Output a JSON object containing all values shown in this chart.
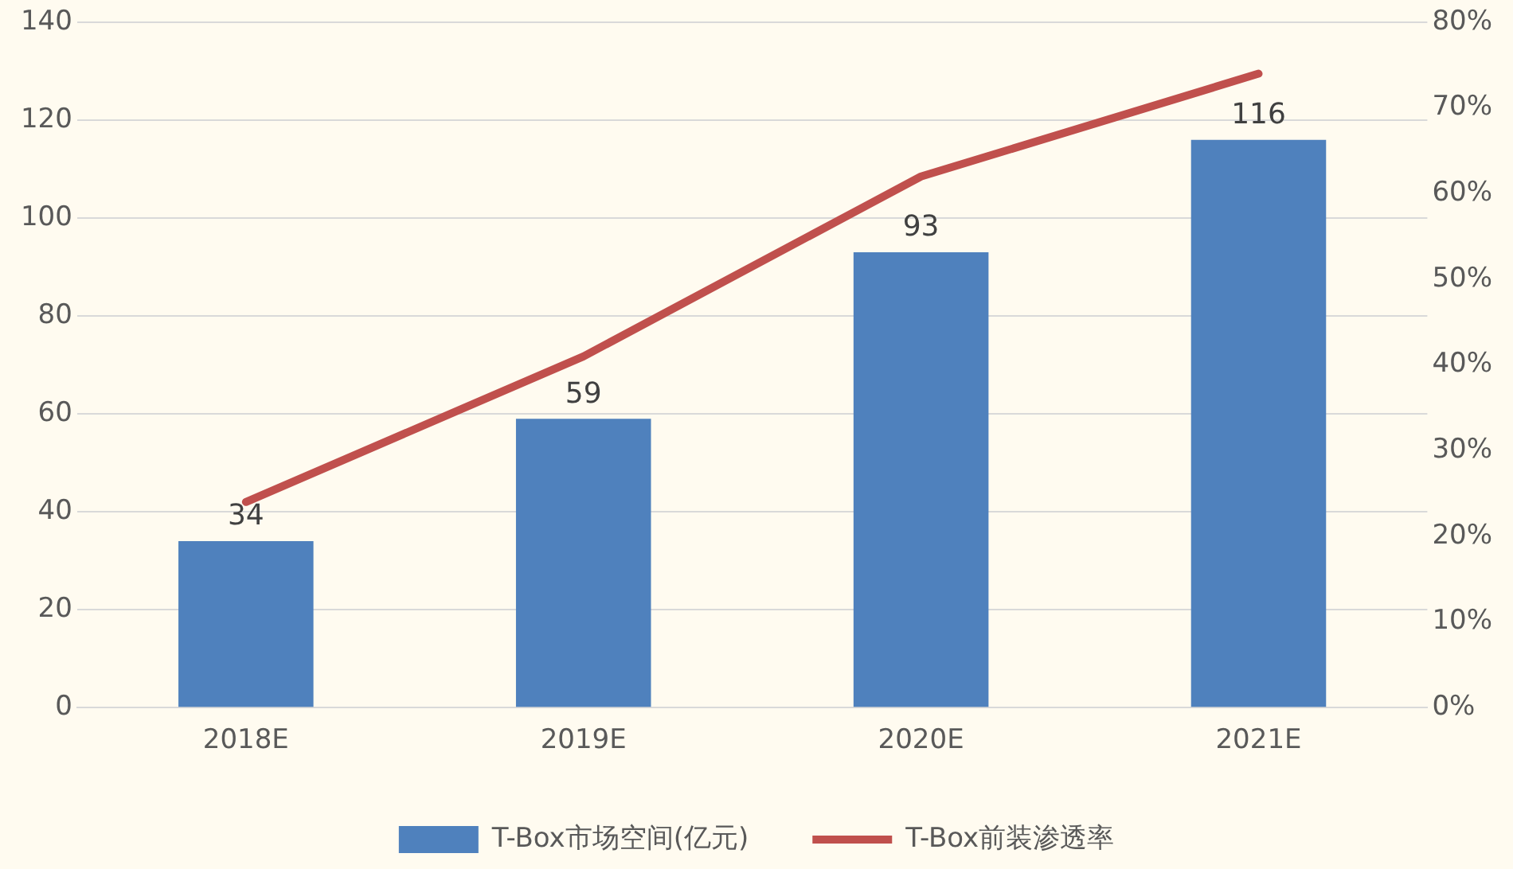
{
  "chart_data": {
    "type": "bar",
    "categories": [
      "2018E",
      "2019E",
      "2020E",
      "2021E"
    ],
    "series": [
      {
        "name": "T-Box市场空间(亿元)",
        "color": "#4f81bd",
        "values": [
          34,
          59,
          93,
          116
        ],
        "value_labels": [
          "34",
          "59",
          "93",
          "116"
        ]
      },
      {
        "name": "T-Box前装渗透率",
        "type": "line",
        "axis": "y2",
        "color": "#c0504d",
        "values": [
          24,
          41,
          62,
          74
        ]
      }
    ],
    "ylim": [
      0,
      140
    ],
    "yticks": [
      0,
      20,
      40,
      60,
      80,
      100,
      120,
      140
    ],
    "y2lim": [
      0,
      80
    ],
    "y2ticks": [
      {
        "value": 0,
        "label": "0%"
      },
      {
        "value": 10,
        "label": "10%"
      },
      {
        "value": 20,
        "label": "20%"
      },
      {
        "value": 30,
        "label": "30%"
      },
      {
        "value": 40,
        "label": "40%"
      },
      {
        "value": 50,
        "label": "50%"
      },
      {
        "value": 60,
        "label": "60%"
      },
      {
        "value": 70,
        "label": "70%"
      },
      {
        "value": 80,
        "label": "80%"
      }
    ],
    "grid": "y",
    "legend": "bottom",
    "marker": "none"
  }
}
